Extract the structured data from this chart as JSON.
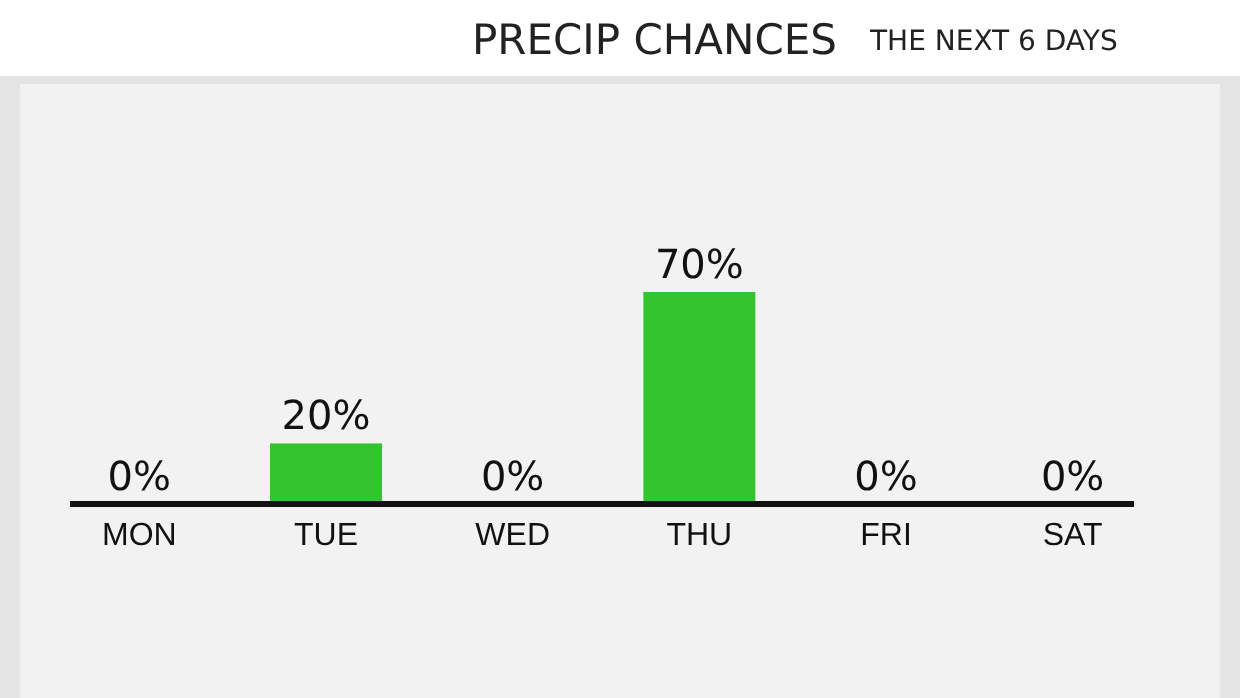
{
  "chart_data": {
    "type": "bar",
    "title": "PRECIP CHANCES",
    "subtitle": "THE NEXT 6 DAYS",
    "categories": [
      "MON",
      "TUE",
      "WED",
      "THU",
      "FRI",
      "SAT"
    ],
    "values": [
      0,
      20,
      0,
      70,
      0,
      0
    ],
    "value_labels": [
      "0%",
      "20%",
      "0%",
      "70%",
      "0%",
      "0%"
    ],
    "color": "#33c430"
  }
}
